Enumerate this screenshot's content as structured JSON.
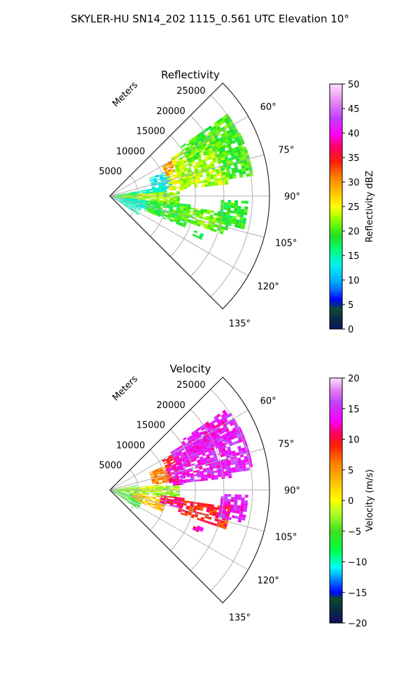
{
  "figure": {
    "suptitle": "SKYLER-HU  SN14_202  1115_0.561 UTC Elevation 10°"
  },
  "chart_data": [
    {
      "type": "heatmap",
      "title": "Reflectivity",
      "radial_label": "Meters",
      "theta_range_deg": [
        45,
        135
      ],
      "r_range_m": [
        0,
        28000
      ],
      "radial_ticks": [
        {
          "value": 5000,
          "label": "5000"
        },
        {
          "value": 10000,
          "label": "10000"
        },
        {
          "value": 15000,
          "label": "15000"
        },
        {
          "value": 20000,
          "label": "20000"
        },
        {
          "value": 25000,
          "label": "25000"
        }
      ],
      "angle_ticks": [
        {
          "value": 60,
          "label": "60°"
        },
        {
          "value": 75,
          "label": "75°"
        },
        {
          "value": 90,
          "label": "90°"
        },
        {
          "value": 105,
          "label": "105°"
        },
        {
          "value": 120,
          "label": "120°"
        },
        {
          "value": 135,
          "label": "135°"
        }
      ],
      "grid": true,
      "colorbar": {
        "label": "Reflectivity dBZ",
        "range": [
          0,
          50
        ],
        "ticks": [
          {
            "value": 0,
            "label": "0"
          },
          {
            "value": 5,
            "label": "5"
          },
          {
            "value": 10,
            "label": "10"
          },
          {
            "value": 15,
            "label": "15"
          },
          {
            "value": 20,
            "label": "20"
          },
          {
            "value": 25,
            "label": "25"
          },
          {
            "value": 30,
            "label": "30"
          },
          {
            "value": 35,
            "label": "35"
          },
          {
            "value": 40,
            "label": "40"
          },
          {
            "value": 45,
            "label": "45"
          },
          {
            "value": 50,
            "label": "50"
          }
        ],
        "stops": [
          {
            "v": 0,
            "c": "#101060"
          },
          {
            "v": 2,
            "c": "#0a2a45"
          },
          {
            "v": 4,
            "c": "#0f4a35"
          },
          {
            "v": 6,
            "c": "#0000ff"
          },
          {
            "v": 8,
            "c": "#0070ff"
          },
          {
            "v": 10,
            "c": "#00b4ff"
          },
          {
            "v": 13,
            "c": "#00f0f0"
          },
          {
            "v": 16,
            "c": "#00ff80"
          },
          {
            "v": 19,
            "c": "#20e020"
          },
          {
            "v": 22,
            "c": "#80ff00"
          },
          {
            "v": 25,
            "c": "#ffff00"
          },
          {
            "v": 28,
            "c": "#ffc000"
          },
          {
            "v": 31,
            "c": "#ff8000"
          },
          {
            "v": 34,
            "c": "#ff2000"
          },
          {
            "v": 37,
            "c": "#ff0060"
          },
          {
            "v": 40,
            "c": "#ff00ff"
          },
          {
            "v": 43,
            "c": "#c040ff"
          },
          {
            "v": 46,
            "c": "#e080f0"
          },
          {
            "v": 50,
            "c": "#ffe0ff"
          }
        ]
      },
      "echo_regions": [
        {
          "theta": [
            100,
            124
          ],
          "r": [
            0,
            6000
          ],
          "value": 14
        },
        {
          "theta": [
            80,
            100
          ],
          "r": [
            0,
            4500
          ],
          "value": 18
        },
        {
          "theta": [
            86,
            96
          ],
          "r": [
            1500,
            12000
          ],
          "value": 22
        },
        {
          "theta": [
            84,
            92
          ],
          "r": [
            5000,
            9000
          ],
          "value": 24
        },
        {
          "theta": [
            80,
            85
          ],
          "r": [
            4000,
            10000
          ],
          "value": 14
        },
        {
          "theta": [
            97,
            110
          ],
          "r": [
            2500,
            9000
          ],
          "value": 14
        },
        {
          "theta": [
            66,
            82
          ],
          "r": [
            7500,
            11000
          ],
          "value": 13
        },
        {
          "theta": [
            60,
            70
          ],
          "r": [
            10500,
            13000
          ],
          "value": 30
        },
        {
          "theta": [
            68,
            85
          ],
          "r": [
            10500,
            13000
          ],
          "value": 25
        },
        {
          "theta": [
            58,
            84
          ],
          "r": [
            12500,
            21000
          ],
          "value": 23
        },
        {
          "theta": [
            55,
            66
          ],
          "r": [
            15000,
            25000
          ],
          "value": 20
        },
        {
          "theta": [
            64,
            82
          ],
          "r": [
            20000,
            25000
          ],
          "value": 20
        },
        {
          "theta": [
            96,
            112
          ],
          "r": [
            6500,
            14000
          ],
          "value": 19
        },
        {
          "theta": [
            98,
            108
          ],
          "r": [
            12500,
            21000
          ],
          "value": 21
        },
        {
          "theta": [
            92,
            104
          ],
          "r": [
            19500,
            24000
          ],
          "value": 19
        },
        {
          "theta": [
            112,
            115
          ],
          "r": [
            16000,
            17500
          ],
          "value": 18
        }
      ]
    },
    {
      "type": "heatmap",
      "title": "Velocity",
      "radial_label": "Meters",
      "theta_range_deg": [
        45,
        135
      ],
      "r_range_m": [
        0,
        28000
      ],
      "radial_ticks": [
        {
          "value": 5000,
          "label": "5000"
        },
        {
          "value": 10000,
          "label": "10000"
        },
        {
          "value": 15000,
          "label": "15000"
        },
        {
          "value": 20000,
          "label": "20000"
        },
        {
          "value": 25000,
          "label": "25000"
        }
      ],
      "angle_ticks": [
        {
          "value": 60,
          "label": "60°"
        },
        {
          "value": 75,
          "label": "75°"
        },
        {
          "value": 90,
          "label": "90°"
        },
        {
          "value": 105,
          "label": "105°"
        },
        {
          "value": 120,
          "label": "120°"
        },
        {
          "value": 135,
          "label": "135°"
        }
      ],
      "grid": true,
      "colorbar": {
        "label": "Velocity (m/s)",
        "range": [
          -20,
          20
        ],
        "ticks": [
          {
            "value": -20,
            "label": "−20"
          },
          {
            "value": -15,
            "label": "−15"
          },
          {
            "value": -10,
            "label": "−10"
          },
          {
            "value": -5,
            "label": "−5"
          },
          {
            "value": 0,
            "label": "0"
          },
          {
            "value": 5,
            "label": "5"
          },
          {
            "value": 10,
            "label": "10"
          },
          {
            "value": 15,
            "label": "15"
          },
          {
            "value": 20,
            "label": "20"
          }
        ],
        "stops": [
          {
            "v": -20,
            "c": "#101060"
          },
          {
            "v": -18,
            "c": "#0a2a45"
          },
          {
            "v": -16,
            "c": "#0f4a35"
          },
          {
            "v": -15,
            "c": "#0000ff"
          },
          {
            "v": -13,
            "c": "#0080ff"
          },
          {
            "v": -11,
            "c": "#00ffff"
          },
          {
            "v": -8,
            "c": "#00ff40"
          },
          {
            "v": -5,
            "c": "#40e020"
          },
          {
            "v": -2,
            "c": "#b0ff20"
          },
          {
            "v": 0,
            "c": "#ffff00"
          },
          {
            "v": 3,
            "c": "#ffc000"
          },
          {
            "v": 6,
            "c": "#ff8000"
          },
          {
            "v": 9,
            "c": "#ff2000"
          },
          {
            "v": 11,
            "c": "#ff0060"
          },
          {
            "v": 13,
            "c": "#ff00ff"
          },
          {
            "v": 16,
            "c": "#c040ff"
          },
          {
            "v": 18,
            "c": "#e080f0"
          },
          {
            "v": 20,
            "c": "#ffe0ff"
          }
        ]
      },
      "echo_regions": [
        {
          "theta": [
            100,
            124
          ],
          "r": [
            0,
            6000
          ],
          "value": -6
        },
        {
          "theta": [
            80,
            100
          ],
          "r": [
            0,
            4500
          ],
          "value": -4
        },
        {
          "theta": [
            86,
            96
          ],
          "r": [
            1500,
            12000
          ],
          "value": -3
        },
        {
          "theta": [
            84,
            92
          ],
          "r": [
            5000,
            9000
          ],
          "value": -1
        },
        {
          "theta": [
            97,
            112
          ],
          "r": [
            4000,
            10000
          ],
          "value": 3
        },
        {
          "theta": [
            66,
            82
          ],
          "r": [
            7500,
            11000
          ],
          "value": 6
        },
        {
          "theta": [
            60,
            70
          ],
          "r": [
            10500,
            13000
          ],
          "value": 9
        },
        {
          "theta": [
            68,
            86
          ],
          "r": [
            10500,
            13500
          ],
          "value": 13
        },
        {
          "theta": [
            58,
            84
          ],
          "r": [
            12500,
            21000
          ],
          "value": 14
        },
        {
          "theta": [
            55,
            66
          ],
          "r": [
            15000,
            25000
          ],
          "value": 14
        },
        {
          "theta": [
            64,
            82
          ],
          "r": [
            20000,
            25000
          ],
          "value": 15
        },
        {
          "theta": [
            98,
            108
          ],
          "r": [
            12500,
            21000
          ],
          "value": 9
        },
        {
          "theta": [
            96,
            104
          ],
          "r": [
            9000,
            13000
          ],
          "value": 11
        },
        {
          "theta": [
            92,
            104
          ],
          "r": [
            19500,
            24000
          ],
          "value": 14
        },
        {
          "theta": [
            112,
            115
          ],
          "r": [
            16000,
            17500
          ],
          "value": 12
        }
      ]
    }
  ]
}
